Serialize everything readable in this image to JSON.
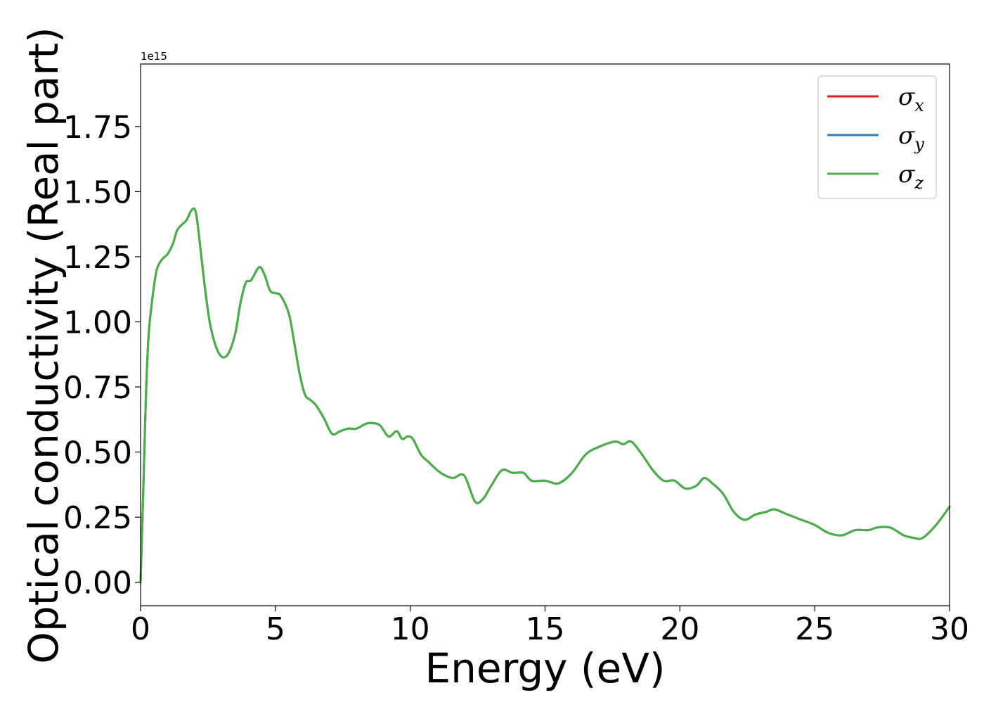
{
  "chart_data": {
    "type": "line",
    "xlabel": "Energy (eV)",
    "ylabel": "Optical conductivity (Real part)",
    "y_offset_label": "1e15",
    "xlim": [
      0,
      30
    ],
    "ylim": [
      -0.09,
      1.99
    ],
    "x_ticks": [
      0,
      5,
      10,
      15,
      20,
      25,
      30
    ],
    "x_tick_labels": [
      "0",
      "5",
      "10",
      "15",
      "20",
      "25",
      "30"
    ],
    "y_ticks": [
      0,
      0.25,
      0.5,
      0.75,
      1.0,
      1.25,
      1.5,
      1.75
    ],
    "y_tick_labels": [
      "0.00",
      "0.25",
      "0.50",
      "0.75",
      "1.00",
      "1.25",
      "1.50",
      "1.75"
    ],
    "grid": false,
    "legend_position": "top-right",
    "series": [
      {
        "name": "σx",
        "base": "σ",
        "sub": "x",
        "color": "#e41a1c",
        "x": [
          0,
          0.1,
          0.2,
          0.3,
          0.45,
          0.6,
          0.8,
          1.0,
          1.2,
          1.35,
          1.5,
          1.7,
          1.9,
          2.05,
          2.2,
          2.4,
          2.6,
          2.9,
          3.2,
          3.5,
          3.7,
          3.9,
          4.1,
          4.4,
          4.6,
          4.8,
          5.0,
          5.2,
          5.5,
          5.7,
          5.9,
          6.1,
          6.3,
          6.5,
          6.8,
          7.1,
          7.4,
          7.7,
          8.0,
          8.4,
          8.7,
          8.9,
          9.2,
          9.5,
          9.7,
          9.9,
          10.1,
          10.4,
          10.7,
          11.0,
          11.3,
          11.6,
          12.0,
          12.4,
          12.7,
          13.0,
          13.4,
          13.8,
          14.2,
          14.5,
          15.0,
          15.5,
          16.0,
          16.5,
          17.0,
          17.6,
          17.9,
          18.2,
          18.6,
          19.0,
          19.4,
          19.8,
          20.2,
          20.6,
          20.9,
          21.2,
          21.6,
          22.0,
          22.4,
          22.8,
          23.2,
          23.5,
          24.0,
          24.5,
          25.0,
          25.5,
          26.0,
          26.5,
          27.0,
          27.3,
          27.8,
          28.3,
          28.7,
          29.0,
          29.5,
          30.0
        ],
        "y": [
          0.0,
          0.35,
          0.72,
          0.95,
          1.1,
          1.2,
          1.24,
          1.26,
          1.3,
          1.35,
          1.37,
          1.39,
          1.43,
          1.42,
          1.3,
          1.12,
          0.98,
          0.88,
          0.87,
          0.95,
          1.07,
          1.15,
          1.16,
          1.21,
          1.18,
          1.12,
          1.11,
          1.1,
          1.03,
          0.92,
          0.8,
          0.72,
          0.7,
          0.68,
          0.63,
          0.57,
          0.58,
          0.59,
          0.59,
          0.61,
          0.61,
          0.6,
          0.56,
          0.58,
          0.55,
          0.56,
          0.55,
          0.49,
          0.46,
          0.43,
          0.41,
          0.4,
          0.41,
          0.31,
          0.32,
          0.37,
          0.43,
          0.42,
          0.42,
          0.39,
          0.39,
          0.38,
          0.42,
          0.49,
          0.52,
          0.54,
          0.53,
          0.54,
          0.49,
          0.43,
          0.39,
          0.39,
          0.36,
          0.37,
          0.4,
          0.38,
          0.34,
          0.27,
          0.24,
          0.26,
          0.27,
          0.28,
          0.26,
          0.24,
          0.22,
          0.19,
          0.18,
          0.2,
          0.2,
          0.21,
          0.21,
          0.18,
          0.17,
          0.17,
          0.22,
          0.29
        ]
      },
      {
        "name": "σy",
        "base": "σ",
        "sub": "y",
        "color": "#377eb8",
        "x": [
          0,
          0.1,
          0.2,
          0.3,
          0.45,
          0.6,
          0.8,
          1.0,
          1.2,
          1.35,
          1.5,
          1.7,
          1.9,
          2.05,
          2.2,
          2.4,
          2.6,
          2.9,
          3.2,
          3.5,
          3.7,
          3.9,
          4.1,
          4.4,
          4.6,
          4.8,
          5.0,
          5.2,
          5.5,
          5.7,
          5.9,
          6.1,
          6.3,
          6.5,
          6.8,
          7.1,
          7.4,
          7.7,
          8.0,
          8.4,
          8.7,
          8.9,
          9.2,
          9.5,
          9.7,
          9.9,
          10.1,
          10.4,
          10.7,
          11.0,
          11.3,
          11.6,
          12.0,
          12.4,
          12.7,
          13.0,
          13.4,
          13.8,
          14.2,
          14.5,
          15.0,
          15.5,
          16.0,
          16.5,
          17.0,
          17.6,
          17.9,
          18.2,
          18.6,
          19.0,
          19.4,
          19.8,
          20.2,
          20.6,
          20.9,
          21.2,
          21.6,
          22.0,
          22.4,
          22.8,
          23.2,
          23.5,
          24.0,
          24.5,
          25.0,
          25.5,
          26.0,
          26.5,
          27.0,
          27.3,
          27.8,
          28.3,
          28.7,
          29.0,
          29.5,
          30.0
        ],
        "y": [
          0.0,
          0.35,
          0.72,
          0.95,
          1.1,
          1.2,
          1.24,
          1.26,
          1.3,
          1.35,
          1.37,
          1.39,
          1.43,
          1.42,
          1.3,
          1.12,
          0.98,
          0.88,
          0.87,
          0.95,
          1.07,
          1.15,
          1.16,
          1.21,
          1.18,
          1.12,
          1.11,
          1.1,
          1.03,
          0.92,
          0.8,
          0.72,
          0.7,
          0.68,
          0.63,
          0.57,
          0.58,
          0.59,
          0.59,
          0.61,
          0.61,
          0.6,
          0.56,
          0.58,
          0.55,
          0.56,
          0.55,
          0.49,
          0.46,
          0.43,
          0.41,
          0.4,
          0.41,
          0.31,
          0.32,
          0.37,
          0.43,
          0.42,
          0.42,
          0.39,
          0.39,
          0.38,
          0.42,
          0.49,
          0.52,
          0.54,
          0.53,
          0.54,
          0.49,
          0.43,
          0.39,
          0.39,
          0.36,
          0.37,
          0.4,
          0.38,
          0.34,
          0.27,
          0.24,
          0.26,
          0.27,
          0.28,
          0.26,
          0.24,
          0.22,
          0.19,
          0.18,
          0.2,
          0.2,
          0.21,
          0.21,
          0.18,
          0.17,
          0.17,
          0.22,
          0.29
        ]
      },
      {
        "name": "σz",
        "base": "σ",
        "sub": "z",
        "color": "#4daf4a",
        "x": [
          0,
          0.1,
          0.2,
          0.3,
          0.45,
          0.6,
          0.8,
          1.0,
          1.2,
          1.35,
          1.5,
          1.7,
          1.9,
          2.05,
          2.2,
          2.4,
          2.6,
          2.9,
          3.2,
          3.5,
          3.7,
          3.9,
          4.1,
          4.4,
          4.6,
          4.8,
          5.0,
          5.2,
          5.5,
          5.7,
          5.9,
          6.1,
          6.3,
          6.5,
          6.8,
          7.1,
          7.4,
          7.7,
          8.0,
          8.4,
          8.7,
          8.9,
          9.2,
          9.5,
          9.7,
          9.9,
          10.1,
          10.4,
          10.7,
          11.0,
          11.3,
          11.6,
          12.0,
          12.4,
          12.7,
          13.0,
          13.4,
          13.8,
          14.2,
          14.5,
          15.0,
          15.5,
          16.0,
          16.5,
          17.0,
          17.6,
          17.9,
          18.2,
          18.6,
          19.0,
          19.4,
          19.8,
          20.2,
          20.6,
          20.9,
          21.2,
          21.6,
          22.0,
          22.4,
          22.8,
          23.2,
          23.5,
          24.0,
          24.5,
          25.0,
          25.5,
          26.0,
          26.5,
          27.0,
          27.3,
          27.8,
          28.3,
          28.7,
          29.0,
          29.5,
          30.0
        ],
        "y": [
          0.0,
          0.35,
          0.72,
          0.95,
          1.1,
          1.2,
          1.24,
          1.26,
          1.3,
          1.35,
          1.37,
          1.39,
          1.43,
          1.42,
          1.3,
          1.12,
          0.98,
          0.88,
          0.87,
          0.95,
          1.07,
          1.15,
          1.16,
          1.21,
          1.18,
          1.12,
          1.11,
          1.1,
          1.03,
          0.92,
          0.8,
          0.72,
          0.7,
          0.68,
          0.63,
          0.57,
          0.58,
          0.59,
          0.59,
          0.61,
          0.61,
          0.6,
          0.56,
          0.58,
          0.55,
          0.56,
          0.55,
          0.49,
          0.46,
          0.43,
          0.41,
          0.4,
          0.41,
          0.31,
          0.32,
          0.37,
          0.43,
          0.42,
          0.42,
          0.39,
          0.39,
          0.38,
          0.42,
          0.49,
          0.52,
          0.54,
          0.53,
          0.54,
          0.49,
          0.43,
          0.39,
          0.39,
          0.36,
          0.37,
          0.4,
          0.38,
          0.34,
          0.27,
          0.24,
          0.26,
          0.27,
          0.28,
          0.26,
          0.24,
          0.22,
          0.19,
          0.18,
          0.2,
          0.2,
          0.21,
          0.21,
          0.18,
          0.17,
          0.17,
          0.22,
          0.29
        ]
      }
    ]
  }
}
